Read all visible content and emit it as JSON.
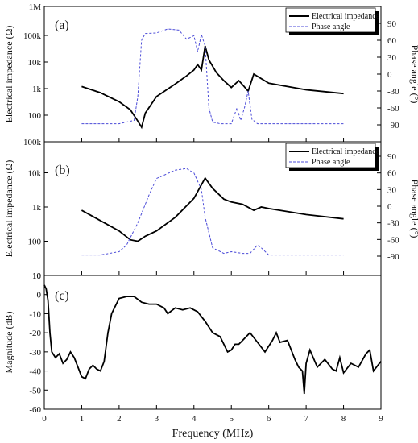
{
  "chart_data": [
    {
      "panel": "(a)",
      "type": "line",
      "ylabel_left": "Electrical impedance (Ω)",
      "ylabel_right": "Phase angle (°)",
      "left_scale": "log",
      "left_ticks": [
        "100k",
        "10k",
        "1k",
        "100",
        "1M"
      ],
      "left_tick_values": [
        100000,
        10000,
        1000,
        100,
        1000000
      ],
      "right_ticks": [
        "90",
        "60",
        "30",
        "0",
        "-30",
        "-60",
        "-90"
      ],
      "right_tick_values": [
        90,
        60,
        30,
        0,
        -30,
        -60,
        -90
      ],
      "legend": {
        "position": "top-right",
        "entries": [
          "Electrical impedance",
          "Phase angle"
        ]
      },
      "series": [
        {
          "name": "Electrical impedance",
          "axis": "left",
          "color": "#000000",
          "style": "solid",
          "x": [
            1.0,
            1.5,
            2.0,
            2.3,
            2.5,
            2.6,
            2.7,
            3.0,
            3.5,
            3.8,
            4.0,
            4.1,
            4.2,
            4.3,
            4.4,
            4.6,
            4.8,
            5.0,
            5.2,
            5.3,
            5.45,
            5.6,
            6.0,
            7.0,
            8.0
          ],
          "y": [
            1200,
            700,
            320,
            160,
            60,
            35,
            120,
            500,
            1500,
            3000,
            5000,
            8000,
            5000,
            40000,
            12000,
            4000,
            2000,
            1100,
            2000,
            1400,
            800,
            3500,
            1600,
            900,
            650
          ]
        },
        {
          "name": "Phase angle",
          "axis": "right",
          "color": "#4b4bd8",
          "style": "dashed",
          "x": [
            1.0,
            2.0,
            2.4,
            2.5,
            2.6,
            2.7,
            3.0,
            3.3,
            3.6,
            3.8,
            4.0,
            4.1,
            4.2,
            4.3,
            4.4,
            4.5,
            4.7,
            5.0,
            5.15,
            5.25,
            5.35,
            5.45,
            5.55,
            5.7,
            6.0,
            7.0,
            8.0
          ],
          "y": [
            -88,
            -88,
            -82,
            -40,
            60,
            72,
            73,
            80,
            78,
            62,
            68,
            40,
            70,
            50,
            -60,
            -85,
            -88,
            -88,
            -60,
            -82,
            -60,
            -30,
            -80,
            -88,
            -88,
            -88,
            -88
          ]
        }
      ]
    },
    {
      "panel": "(b)",
      "type": "line",
      "ylabel_left": "Electrical impedance (Ω)",
      "ylabel_right": "Phase angle (°)",
      "left_scale": "log",
      "left_ticks": [
        "10k",
        "1k",
        "100",
        "10",
        "100k"
      ],
      "left_tick_values": [
        10000,
        1000,
        100,
        10,
        100000
      ],
      "right_ticks": [
        "90",
        "60",
        "30",
        "0",
        "-30",
        "-60",
        "-90"
      ],
      "right_tick_values": [
        90,
        60,
        30,
        0,
        -30,
        -60,
        -90
      ],
      "legend": {
        "position": "top-right",
        "entries": [
          "Electrical impedance",
          "Phase angle"
        ]
      },
      "series": [
        {
          "name": "Electrical impedance",
          "axis": "left",
          "color": "#000000",
          "style": "solid",
          "x": [
            1.0,
            1.5,
            2.0,
            2.3,
            2.5,
            2.7,
            3.0,
            3.5,
            4.0,
            4.3,
            4.5,
            4.8,
            5.0,
            5.3,
            5.6,
            5.8,
            6.0,
            7.0,
            8.0
          ],
          "y": [
            800,
            400,
            200,
            110,
            100,
            140,
            200,
            500,
            1800,
            7000,
            3500,
            1700,
            1400,
            1200,
            800,
            1000,
            900,
            600,
            450
          ]
        },
        {
          "name": "Phase angle",
          "axis": "right",
          "color": "#4b4bd8",
          "style": "dashed",
          "x": [
            1.0,
            1.5,
            2.0,
            2.2,
            2.5,
            2.8,
            3.0,
            3.5,
            3.8,
            4.0,
            4.2,
            4.3,
            4.5,
            4.8,
            5.0,
            5.3,
            5.5,
            5.7,
            5.8,
            6.0,
            6.5,
            7.0,
            8.0
          ],
          "y": [
            -88,
            -88,
            -82,
            -70,
            -30,
            20,
            50,
            65,
            68,
            60,
            30,
            -20,
            -75,
            -85,
            -82,
            -85,
            -85,
            -70,
            -75,
            -88,
            -88,
            -88,
            -88
          ]
        }
      ]
    },
    {
      "panel": "(c)",
      "type": "line",
      "xlabel": "Frequency (MHz)",
      "ylabel_left": "Magnitude (dB)",
      "ylim": [
        -60,
        10
      ],
      "left_ticks": [
        "10",
        "0",
        "-10",
        "-20",
        "-30",
        "-40",
        "-50",
        "-60"
      ],
      "left_tick_values": [
        10,
        0,
        -10,
        -20,
        -30,
        -40,
        -50,
        -60
      ],
      "xlim": [
        0,
        9
      ],
      "x_ticks": [
        "0",
        "1",
        "2",
        "3",
        "4",
        "5",
        "6",
        "7",
        "8",
        "9"
      ],
      "series": [
        {
          "name": "Magnitude",
          "axis": "left",
          "color": "#000000",
          "style": "solid",
          "x": [
            0.0,
            0.05,
            0.1,
            0.15,
            0.2,
            0.3,
            0.4,
            0.5,
            0.6,
            0.7,
            0.8,
            0.9,
            1.0,
            1.1,
            1.2,
            1.3,
            1.4,
            1.5,
            1.6,
            1.7,
            1.8,
            2.0,
            2.2,
            2.4,
            2.6,
            2.8,
            3.0,
            3.2,
            3.3,
            3.5,
            3.7,
            3.9,
            4.1,
            4.3,
            4.5,
            4.7,
            4.9,
            5.0,
            5.1,
            5.2,
            5.3,
            5.5,
            5.7,
            5.9,
            6.1,
            6.2,
            6.3,
            6.5,
            6.7,
            6.8,
            6.9,
            6.95,
            7.0,
            7.1,
            7.3,
            7.5,
            7.7,
            7.8,
            7.9,
            8.0,
            8.2,
            8.4,
            8.6,
            8.7,
            8.8,
            9.0
          ],
          "y": [
            5,
            3,
            -3,
            -20,
            -30,
            -33,
            -31,
            -36,
            -34,
            -30,
            -33,
            -38,
            -43,
            -44,
            -39,
            -37,
            -39,
            -40,
            -35,
            -20,
            -10,
            -2,
            -1,
            -1,
            -4,
            -5,
            -5,
            -7,
            -10,
            -7,
            -8,
            -7,
            -9,
            -14,
            -20,
            -22,
            -30,
            -29,
            -26,
            -26,
            -24,
            -20,
            -25,
            -30,
            -24,
            -20,
            -25,
            -24,
            -34,
            -38,
            -40,
            -52,
            -36,
            -29,
            -38,
            -34,
            -39,
            -40,
            -33,
            -41,
            -36,
            -38,
            -31,
            -29,
            -40,
            -35
          ]
        }
      ]
    }
  ]
}
